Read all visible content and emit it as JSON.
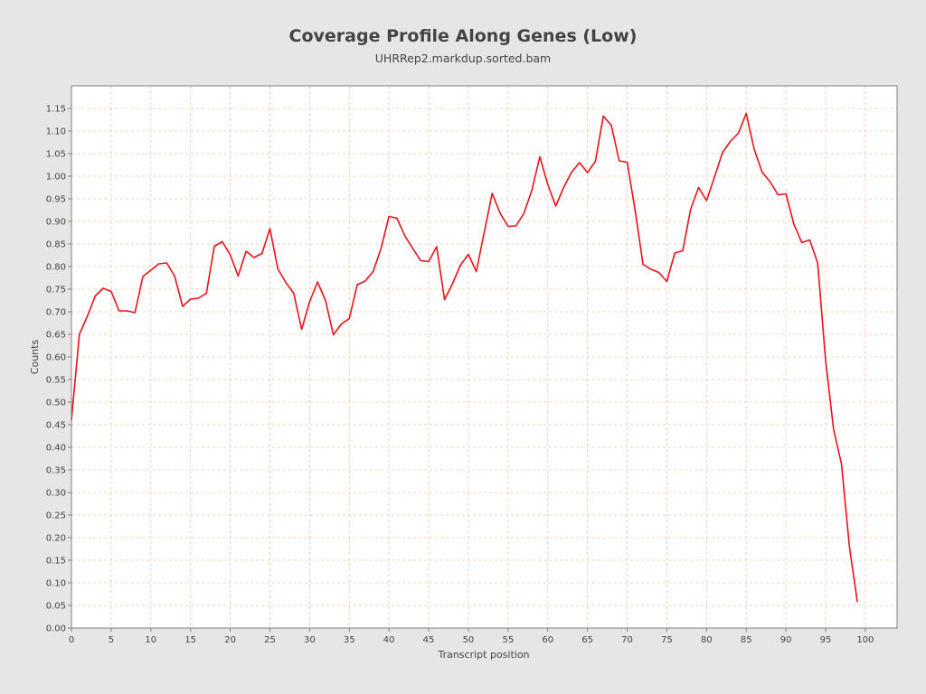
{
  "chart_data": {
    "type": "line",
    "title": "Coverage Profile Along Genes (Low)",
    "subtitle": "UHRRep2.markdup.sorted.bam",
    "xlabel": "Transcript position",
    "ylabel": "Counts",
    "xlim": [
      0,
      104
    ],
    "ylim": [
      0,
      1.2
    ],
    "x_ticks": [
      0,
      5,
      10,
      15,
      20,
      25,
      30,
      35,
      40,
      45,
      50,
      55,
      60,
      65,
      70,
      75,
      80,
      85,
      90,
      95,
      100
    ],
    "y_ticks": [
      "0.00",
      "0.05",
      "0.10",
      "0.15",
      "0.20",
      "0.25",
      "0.30",
      "0.35",
      "0.40",
      "0.45",
      "0.50",
      "0.55",
      "0.60",
      "0.65",
      "0.70",
      "0.75",
      "0.80",
      "0.85",
      "0.90",
      "0.95",
      "1.00",
      "1.05",
      "1.10",
      "1.15"
    ],
    "grid": true,
    "series": [
      {
        "color": "#e8121a",
        "x": [
          0,
          1,
          2,
          3,
          4,
          5,
          6,
          7,
          8,
          9,
          10,
          11,
          12,
          13,
          14,
          15,
          16,
          17,
          18,
          19,
          20,
          21,
          22,
          23,
          24,
          25,
          26,
          27,
          28,
          29,
          30,
          31,
          32,
          33,
          34,
          35,
          36,
          37,
          38,
          39,
          40,
          41,
          42,
          43,
          44,
          45,
          46,
          47,
          48,
          49,
          50,
          51,
          52,
          53,
          54,
          55,
          56,
          57,
          58,
          59,
          60,
          61,
          62,
          63,
          64,
          65,
          66,
          67,
          68,
          69,
          70,
          71,
          72,
          73,
          74,
          75,
          76,
          77,
          78,
          79,
          80,
          81,
          82,
          83,
          84,
          85,
          86,
          87,
          88,
          89,
          90,
          91,
          92,
          93,
          94,
          95,
          96,
          97,
          98,
          99
        ],
        "y": [
          0.46,
          0.65,
          0.69,
          0.735,
          0.752,
          0.745,
          0.702,
          0.702,
          0.698,
          0.778,
          0.792,
          0.806,
          0.808,
          0.779,
          0.712,
          0.728,
          0.73,
          0.741,
          0.845,
          0.855,
          0.826,
          0.779,
          0.834,
          0.82,
          0.829,
          0.884,
          0.795,
          0.765,
          0.741,
          0.661,
          0.722,
          0.766,
          0.725,
          0.649,
          0.673,
          0.685,
          0.76,
          0.768,
          0.789,
          0.84,
          0.911,
          0.907,
          0.868,
          0.84,
          0.813,
          0.811,
          0.844,
          0.727,
          0.762,
          0.803,
          0.827,
          0.789,
          0.876,
          0.962,
          0.918,
          0.889,
          0.89,
          0.918,
          0.969,
          1.043,
          0.982,
          0.934,
          0.975,
          1.009,
          1.03,
          1.008,
          1.033,
          1.133,
          1.113,
          1.034,
          1.031,
          0.925,
          0.805,
          0.794,
          0.787,
          0.767,
          0.83,
          0.835,
          0.927,
          0.975,
          0.946,
          0.998,
          1.052,
          1.077,
          1.095,
          1.139,
          1.06,
          1.009,
          0.988,
          0.959,
          0.961,
          0.894,
          0.853,
          0.859,
          0.808,
          0.592,
          0.44,
          0.363,
          0.18,
          0.058
        ]
      }
    ]
  }
}
